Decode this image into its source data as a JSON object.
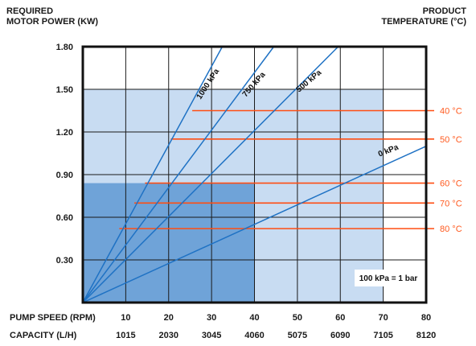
{
  "header": {
    "left_line1": "REQUIRED",
    "left_line2": "MOTOR POWER (KW)",
    "right_line1": "PRODUCT",
    "right_line2": "TEMPERATURE (°C)"
  },
  "rows": {
    "speed_label": "PUMP SPEED (RPM)",
    "capacity_label": "CAPACITY (L/H)"
  },
  "colors": {
    "region_light": "#c8dcf2",
    "region_dark": "#6fa3d8",
    "pressure_line": "#1f72c4",
    "temperature_line": "#ff4d12",
    "grid": "#1a1a1a",
    "frame": "#111111"
  },
  "chart_data": {
    "type": "line",
    "title": "",
    "xlabel": "PUMP SPEED (RPM)",
    "ylabel": "REQUIRED MOTOR POWER (KW)",
    "xlim": [
      0,
      80
    ],
    "ylim": [
      0,
      1.8
    ],
    "x_ticks": [
      10,
      20,
      30,
      40,
      50,
      60,
      70,
      80
    ],
    "capacity_ticks": [
      "1015",
      "2030",
      "3045",
      "4060",
      "5075",
      "6090",
      "7105",
      "8120"
    ],
    "y_ticks": [
      "1.80",
      "1.50",
      "1.20",
      "0.90",
      "0.60",
      "0.30"
    ],
    "y_tick_values": [
      1.8,
      1.5,
      1.2,
      0.9,
      0.6,
      0.3
    ],
    "grid": true,
    "series": [
      {
        "name": "1000 kPa",
        "x": [
          0,
          32.5
        ],
        "y": [
          0,
          1.8
        ]
      },
      {
        "name": "750 kPa",
        "x": [
          0,
          44.5
        ],
        "y": [
          0,
          1.8
        ]
      },
      {
        "name": "500 kPa",
        "x": [
          0,
          59.5
        ],
        "y": [
          0,
          1.8
        ]
      },
      {
        "name": "0 kPa",
        "x": [
          0,
          80
        ],
        "y": [
          0,
          1.1
        ]
      }
    ],
    "temperature_limits": [
      {
        "name": "40 °C",
        "power": 1.35,
        "x_start": 25.5
      },
      {
        "name": "50 °C",
        "power": 1.15,
        "x_start": 20.5
      },
      {
        "name": "60 °C",
        "power": 0.84,
        "x_start": 14.5
      },
      {
        "name": "70 °C",
        "power": 0.7,
        "x_start": 12.0
      },
      {
        "name": "80 °C",
        "power": 0.52,
        "x_start": 8.5
      }
    ],
    "regions": [
      {
        "name": "light",
        "x": [
          0,
          70
        ],
        "y": [
          0,
          1.5
        ]
      },
      {
        "name": "dark",
        "x": [
          0,
          40
        ],
        "y": [
          0,
          0.84
        ]
      }
    ],
    "annotation": "100 kPa = 1 bar"
  }
}
